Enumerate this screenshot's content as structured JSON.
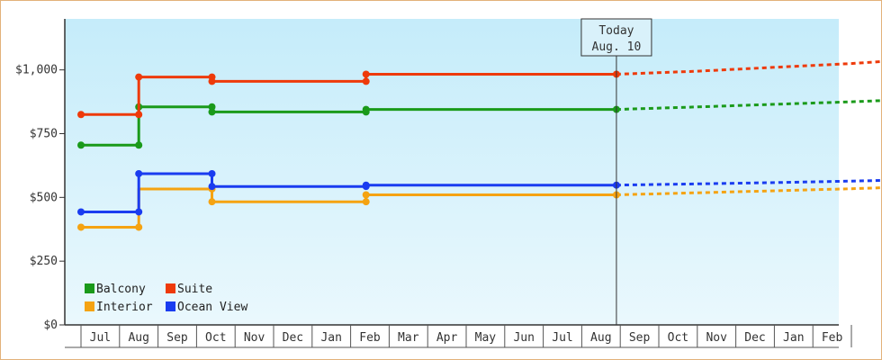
{
  "chart_data": {
    "type": "line",
    "y_axis": {
      "ylim": [
        0,
        1200
      ],
      "ticks": [
        0,
        250,
        500,
        750,
        1000
      ],
      "tick_labels": [
        "$0",
        "$250",
        "$500",
        "$750",
        "$1,000"
      ]
    },
    "x_axis": {
      "months": [
        "Jul",
        "Aug",
        "Sep",
        "Oct",
        "Nov",
        "Dec",
        "Jan",
        "Feb",
        "Mar",
        "Apr",
        "May",
        "Jun",
        "Jul",
        "Aug",
        "Sep",
        "Oct",
        "Nov",
        "Dec",
        "Jan",
        "Feb"
      ]
    },
    "today": {
      "line1": "Today",
      "line2": "Aug. 10"
    },
    "series": [
      {
        "name": "Balcony",
        "color": "#1a9a1a",
        "history": [
          [
            -0.5,
            705
          ],
          [
            1.0,
            705
          ],
          [
            1.0,
            855
          ],
          [
            2.9,
            855
          ],
          [
            2.9,
            835
          ],
          [
            6.9,
            835
          ],
          [
            6.9,
            845
          ],
          [
            13.4,
            845
          ]
        ],
        "markers": [
          [
            -0.5,
            705
          ],
          [
            1.0,
            705
          ],
          [
            1.0,
            855
          ],
          [
            2.9,
            855
          ],
          [
            2.9,
            835
          ],
          [
            6.9,
            835
          ],
          [
            6.9,
            845
          ],
          [
            13.4,
            845
          ]
        ],
        "forecast": [
          [
            13.4,
            845
          ],
          [
            15.5,
            855
          ],
          [
            17.5,
            865
          ],
          [
            19.5,
            875
          ],
          [
            20.7,
            882
          ]
        ]
      },
      {
        "name": "Suite",
        "color": "#ee3a0a",
        "history": [
          [
            -0.5,
            825
          ],
          [
            1.0,
            825
          ],
          [
            1.0,
            972
          ],
          [
            2.9,
            972
          ],
          [
            2.9,
            955
          ],
          [
            6.9,
            955
          ],
          [
            6.9,
            983
          ],
          [
            13.4,
            983
          ]
        ],
        "markers": [
          [
            -0.5,
            825
          ],
          [
            1.0,
            825
          ],
          [
            1.0,
            972
          ],
          [
            2.9,
            972
          ],
          [
            2.9,
            955
          ],
          [
            6.9,
            955
          ],
          [
            6.9,
            983
          ],
          [
            13.4,
            983
          ]
        ],
        "forecast": [
          [
            13.4,
            983
          ],
          [
            15.5,
            995
          ],
          [
            17.5,
            1010
          ],
          [
            19.5,
            1025
          ],
          [
            20.7,
            1037
          ]
        ]
      },
      {
        "name": "Interior",
        "color": "#f5a312",
        "history": [
          [
            -0.5,
            383
          ],
          [
            1.0,
            383
          ],
          [
            1.0,
            533
          ],
          [
            2.9,
            533
          ],
          [
            2.9,
            483
          ],
          [
            6.9,
            483
          ],
          [
            6.9,
            510
          ],
          [
            13.4,
            510
          ]
        ],
        "markers": [
          [
            -0.5,
            383
          ],
          [
            1.0,
            383
          ],
          [
            2.9,
            533
          ],
          [
            2.9,
            483
          ],
          [
            6.9,
            483
          ],
          [
            6.9,
            510
          ],
          [
            13.4,
            510
          ]
        ],
        "forecast": [
          [
            13.4,
            510
          ],
          [
            15.5,
            518
          ],
          [
            17.5,
            526
          ],
          [
            19.5,
            534
          ],
          [
            20.7,
            540
          ]
        ]
      },
      {
        "name": "Ocean View",
        "color": "#1a3cf0",
        "history": [
          [
            -0.5,
            443
          ],
          [
            1.0,
            443
          ],
          [
            1.0,
            593
          ],
          [
            2.9,
            593
          ],
          [
            2.9,
            543
          ],
          [
            6.9,
            543
          ],
          [
            6.9,
            548
          ],
          [
            13.4,
            548
          ]
        ],
        "markers": [
          [
            -0.5,
            443
          ],
          [
            1.0,
            443
          ],
          [
            1.0,
            593
          ],
          [
            2.9,
            593
          ],
          [
            2.9,
            543
          ],
          [
            6.9,
            543
          ],
          [
            6.9,
            548
          ],
          [
            13.4,
            548
          ]
        ],
        "forecast": [
          [
            13.4,
            548
          ],
          [
            15.5,
            553
          ],
          [
            17.5,
            558
          ],
          [
            19.5,
            564
          ],
          [
            20.7,
            568
          ]
        ]
      }
    ],
    "legend": {
      "placement": "bottom-left",
      "items": [
        {
          "label": "Balcony",
          "color": "#1a9a1a"
        },
        {
          "label": "Suite",
          "color": "#ee3a0a"
        },
        {
          "label": "Interior",
          "color": "#f5a312"
        },
        {
          "label": "Ocean View",
          "color": "#1a3cf0"
        }
      ]
    }
  }
}
